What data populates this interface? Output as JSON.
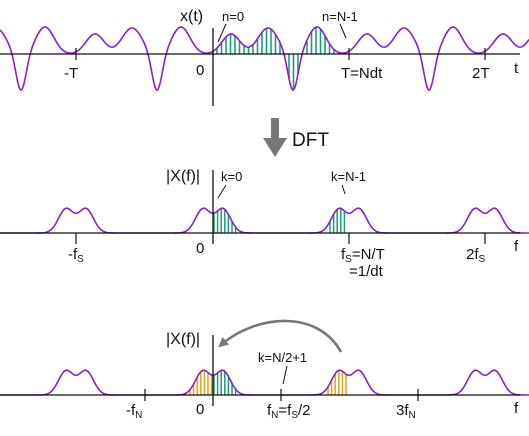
{
  "colors": {
    "signal": "#8a1fc9",
    "sample_blue": "#1f7ab5",
    "sample_fill": "#1b9e77",
    "sample_orange": "#e6a317",
    "axis": "#111111",
    "arrow": "#777777"
  },
  "panel_time": {
    "ylabel": "x(t)",
    "origin": "0",
    "tick_neg_T": "-T",
    "tick_T": "T=Ndt",
    "tick_2T": "2T",
    "xlabel": "t",
    "first_sample": "n=0",
    "last_sample": "n=N-1"
  },
  "dft": {
    "label": "DFT"
  },
  "panel_spectrum": {
    "ylabel": "|X(f)|",
    "origin": "0",
    "tick_neg_fs_main": "-f",
    "tick_neg_fs_sub": "S",
    "tick_fs_main": "f",
    "tick_fs_sub": "S",
    "tick_fs_rest": "=N/T",
    "tick_fs_line2": "=1/dt",
    "tick_2fs_main": "2f",
    "tick_2fs_sub": "S",
    "xlabel": "f",
    "first_bin": "k=0",
    "last_bin": "k=N-1"
  },
  "panel_shifted": {
    "ylabel": "|X(f)|",
    "origin": "0",
    "tick_neg_fN_main": "-f",
    "tick_neg_fN_sub": "N",
    "tick_fN_main": "f",
    "tick_fN_sub": "N",
    "tick_fN_eq": "=f",
    "tick_fN_sub2": "S",
    "tick_fN_rest": "/2",
    "tick_3fN_main": "3f",
    "tick_3fN_sub": "N",
    "xlabel": "f",
    "mid_bin": "k=N/2+1"
  }
}
